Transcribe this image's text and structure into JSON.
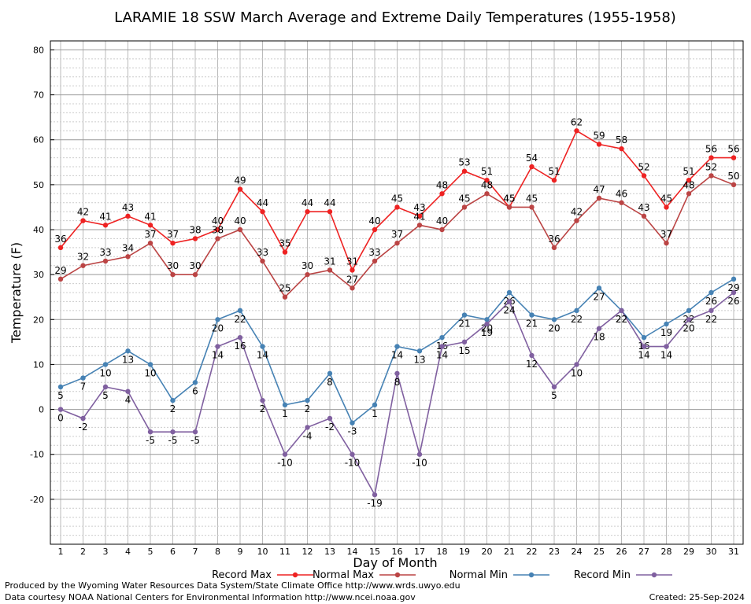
{
  "chart_data": {
    "type": "line",
    "title": "LARAMIE 18 SSW March Average and Extreme Daily Temperatures (1955-1958)",
    "xlabel": "Day of Month",
    "ylabel": "Temperature (F)",
    "ylim": [
      -30,
      82
    ],
    "yticks": [
      -20,
      -10,
      0,
      10,
      20,
      30,
      40,
      50,
      60,
      70,
      80
    ],
    "grid": true,
    "legend_position": "bottom",
    "x": [
      1,
      2,
      3,
      4,
      5,
      6,
      7,
      8,
      9,
      10,
      11,
      12,
      13,
      14,
      15,
      16,
      17,
      18,
      19,
      20,
      21,
      22,
      23,
      24,
      25,
      26,
      27,
      28,
      29,
      30,
      31
    ],
    "series": [
      {
        "name": "Record Max",
        "color": "#ee2222",
        "label_pos": "above",
        "values": [
          36,
          42,
          41,
          43,
          41,
          37,
          38,
          40,
          49,
          44,
          35,
          44,
          44,
          31,
          40,
          45,
          43,
          48,
          53,
          51,
          45,
          54,
          51,
          62,
          59,
          58,
          52,
          45,
          51,
          56,
          56
        ]
      },
      {
        "name": "Normal Max",
        "color": "#bb4444",
        "label_pos": "above",
        "values": [
          29,
          32,
          33,
          34,
          37,
          30,
          30,
          38,
          40,
          33,
          25,
          30,
          31,
          27,
          33,
          37,
          41,
          40,
          45,
          48,
          45,
          45,
          36,
          42,
          47,
          46,
          43,
          37,
          48,
          52,
          50
        ]
      },
      {
        "name": "Normal Min",
        "color": "#4682b4",
        "label_pos": "below",
        "values": [
          5,
          7,
          10,
          13,
          10,
          2,
          6,
          20,
          22,
          14,
          1,
          2,
          8,
          -3,
          1,
          14,
          13,
          16,
          21,
          20,
          26,
          21,
          20,
          22,
          27,
          22,
          16,
          19,
          22,
          26,
          29
        ]
      },
      {
        "name": "Record Min",
        "color": "#8060a0",
        "label_pos": "below",
        "values": [
          0,
          -2,
          5,
          4,
          -5,
          -5,
          -5,
          14,
          16,
          2,
          -10,
          -4,
          -2,
          -10,
          -19,
          8,
          -10,
          14,
          15,
          19,
          24,
          12,
          5,
          10,
          18,
          22,
          14,
          14,
          20,
          22,
          26
        ]
      }
    ]
  },
  "footer": {
    "line1": "Produced by the Wyoming Water Resources Data System/State Climate Office http://www.wrds.uwyo.edu",
    "line2": "Data courtesy NOAA National Centers for Environmental Information http://www.ncei.noaa.gov",
    "created": "Created:  25-Sep-2024"
  }
}
